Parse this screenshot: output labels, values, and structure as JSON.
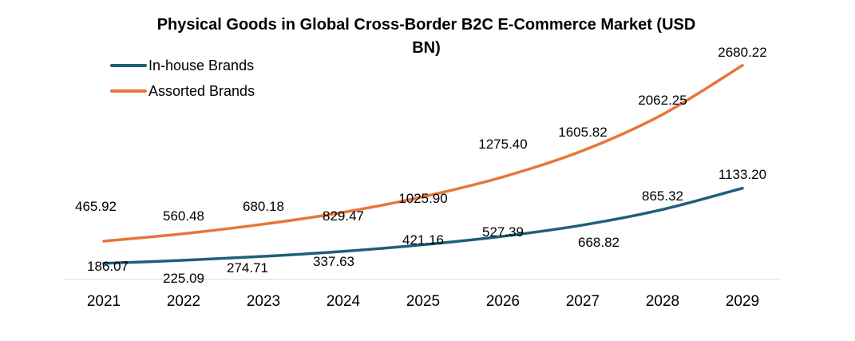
{
  "chart_data": {
    "type": "line",
    "title": "Physical Goods in Global Cross-Border B2C E-Commerce Market (USD BN)",
    "title_lines": [
      "Physical Goods in Global Cross-Border B2C E-Commerce Market (USD",
      "BN)"
    ],
    "xlabel": "",
    "ylabel": "",
    "categories": [
      "2021",
      "2022",
      "2023",
      "2024",
      "2025",
      "2026",
      "2027",
      "2028",
      "2029"
    ],
    "series": [
      {
        "name": "In-house Brands",
        "color": "#1f5f7a",
        "values": [
          186.07,
          225.09,
          274.71,
          337.63,
          421.16,
          527.39,
          668.82,
          865.32,
          1133.2
        ],
        "labels": [
          "186.07",
          "225.09",
          "274.71",
          "337.63",
          "421.16",
          "527.39",
          "668.82",
          "865.32",
          "1133.20"
        ]
      },
      {
        "name": "Assorted Brands",
        "color": "#e8763a",
        "values": [
          465.92,
          560.48,
          680.18,
          829.47,
          1025.9,
          1275.4,
          1605.82,
          2062.25,
          2680.22
        ],
        "labels": [
          "465.92",
          "560.48",
          "680.18",
          "829.47",
          "1025.90",
          "1275.40",
          "1605.82",
          "2062.25",
          "2680.22"
        ]
      }
    ],
    "ylim": [
      0,
      3500
    ],
    "grid": false,
    "legend": "top-left",
    "axis_color": "#d9d9d9"
  }
}
